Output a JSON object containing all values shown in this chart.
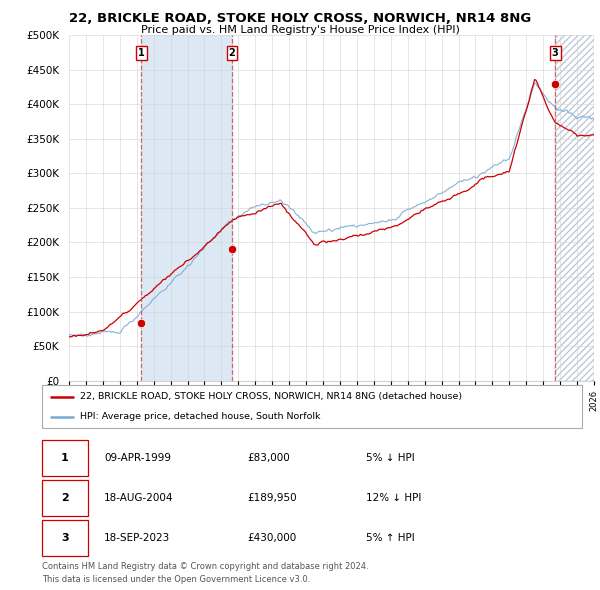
{
  "title": "22, BRICKLE ROAD, STOKE HOLY CROSS, NORWICH, NR14 8NG",
  "subtitle": "Price paid vs. HM Land Registry's House Price Index (HPI)",
  "legend_line1": "22, BRICKLE ROAD, STOKE HOLY CROSS, NORWICH, NR14 8NG (detached house)",
  "legend_line2": "HPI: Average price, detached house, South Norfolk",
  "sale1_label": "1",
  "sale1_date": "09-APR-1999",
  "sale1_price": "£83,000",
  "sale1_hpi": "5% ↓ HPI",
  "sale2_label": "2",
  "sale2_date": "18-AUG-2004",
  "sale2_price": "£189,950",
  "sale2_hpi": "12% ↓ HPI",
  "sale3_label": "3",
  "sale3_date": "18-SEP-2023",
  "sale3_price": "£430,000",
  "sale3_hpi": "5% ↑ HPI",
  "footnote1": "Contains HM Land Registry data © Crown copyright and database right 2024.",
  "footnote2": "This data is licensed under the Open Government Licence v3.0.",
  "property_color": "#cc0000",
  "hpi_color": "#7aaad4",
  "sale_marker_color": "#cc0000",
  "shade_color": "#dde8f5",
  "hatch_color": "#c0c8d8",
  "ylim": [
    0,
    500000
  ],
  "yticks": [
    0,
    50000,
    100000,
    150000,
    200000,
    250000,
    300000,
    350000,
    400000,
    450000,
    500000
  ],
  "year_start": 1995,
  "year_end": 2026,
  "sale_years": [
    1999.27,
    2004.63,
    2023.71
  ],
  "sale_values": [
    83000,
    189950,
    430000
  ]
}
